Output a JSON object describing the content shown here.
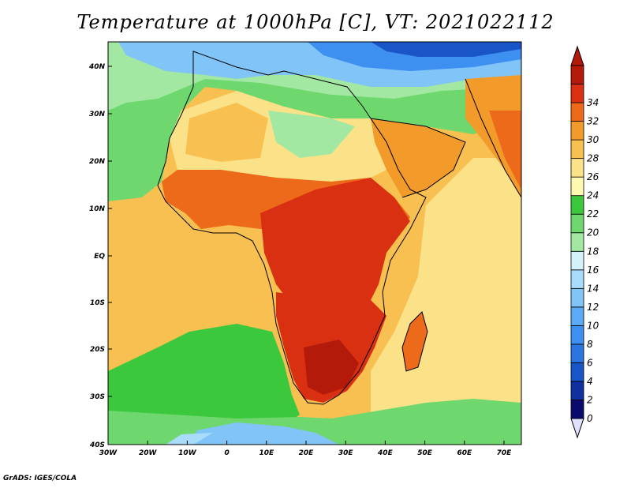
{
  "title": "Temperature at 1000hPa [C], VT: 2021022112",
  "footer": "GrADS: IGES/COLA",
  "map": {
    "lon_labels": [
      "30W",
      "20W",
      "10W",
      "0",
      "10E",
      "20E",
      "30E",
      "40E",
      "50E",
      "60E",
      "70E"
    ],
    "lat_labels": [
      "40N",
      "30N",
      "20N",
      "10N",
      "EQ",
      "10S",
      "20S",
      "30S",
      "40S"
    ],
    "lon_range": [
      -30,
      75
    ],
    "lat_range": [
      -40,
      44
    ]
  },
  "colorbar": {
    "labels": [
      "0",
      "2",
      "4",
      "6",
      "8",
      "10",
      "12",
      "14",
      "16",
      "18",
      "20",
      "22",
      "24",
      "26",
      "28",
      "30",
      "32",
      "34"
    ],
    "colors": [
      "#0a0a6e",
      "#1030a0",
      "#1a55c8",
      "#2a75e0",
      "#3d8ff0",
      "#5aaaf5",
      "#80c4f8",
      "#a8dcfa",
      "#d4f2f8",
      "#a2e8a2",
      "#6ed86e",
      "#3cc83c",
      "#fff8b0",
      "#fbe188",
      "#f8c050",
      "#f29a2a",
      "#ec6a1a",
      "#d83010",
      "#b41a0a"
    ],
    "under_color": "#e0e0ff",
    "over_color": "#b41a0a"
  },
  "regions": [
    {
      "name": "ocean-north-atlantic",
      "color": "#6ed86e"
    },
    {
      "name": "ocean-tropical-atlantic",
      "color": "#f8c050"
    },
    {
      "name": "ocean-indian",
      "color": "#fbe188"
    },
    {
      "name": "ocean-south-atlantic",
      "color": "#3cc83c"
    },
    {
      "name": "southern-ocean",
      "color": "#80c4f8"
    },
    {
      "name": "europe",
      "color": "#5aaaf5"
    },
    {
      "name": "sahara",
      "color": "#fbe188"
    },
    {
      "name": "sahel",
      "color": "#ec6a1a"
    },
    {
      "name": "central-africa",
      "color": "#d83010"
    },
    {
      "name": "southern-africa",
      "color": "#d83010"
    },
    {
      "name": "arabia",
      "color": "#f29a2a"
    },
    {
      "name": "india",
      "color": "#ec6a1a"
    },
    {
      "name": "madagascar",
      "color": "#ec6a1a"
    }
  ]
}
